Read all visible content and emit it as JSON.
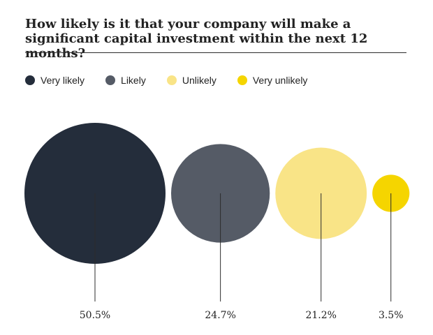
{
  "chart_data": {
    "type": "bubble",
    "title": "How likely is it that your company will make a significant capital investment within the next 12 months?",
    "series": [
      {
        "name": "Very likely",
        "value": 50.5,
        "label": "50.5%",
        "color": "#242d3b"
      },
      {
        "name": "Likely",
        "value": 24.7,
        "label": "24.7%",
        "color": "#555b66"
      },
      {
        "name": "Unlikely",
        "value": 21.2,
        "label": "21.2%",
        "color": "#f9e487"
      },
      {
        "name": "Very unlikely",
        "value": 3.5,
        "label": "3.5%",
        "color": "#f5d500"
      }
    ],
    "legend_position": "top-left",
    "unit": "%"
  }
}
